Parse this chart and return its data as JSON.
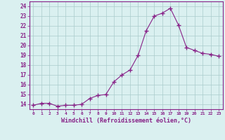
{
  "x": [
    0,
    1,
    2,
    3,
    4,
    5,
    6,
    7,
    8,
    9,
    10,
    11,
    12,
    13,
    14,
    15,
    16,
    17,
    18,
    19,
    20,
    21,
    22,
    23
  ],
  "y": [
    13.9,
    14.1,
    14.1,
    13.8,
    13.9,
    13.9,
    14.0,
    14.6,
    14.9,
    15.0,
    16.3,
    17.0,
    17.5,
    19.0,
    21.5,
    23.0,
    23.3,
    23.8,
    22.1,
    19.8,
    19.5,
    19.2,
    19.1,
    18.9
  ],
  "line_color": "#882288",
  "marker": "+",
  "marker_size": 4,
  "bg_color": "#daf0f0",
  "grid_color": "#aacccc",
  "xlabel": "Windchill (Refroidissement éolien,°C)",
  "xlabel_color": "#882288",
  "ylabel_ticks": [
    14,
    15,
    16,
    17,
    18,
    19,
    20,
    21,
    22,
    23,
    24
  ],
  "xtick_labels": [
    "0",
    "1",
    "2",
    "3",
    "4",
    "5",
    "6",
    "7",
    "8",
    "9",
    "10",
    "11",
    "12",
    "13",
    "14",
    "15",
    "16",
    "17",
    "18",
    "19",
    "20",
    "21",
    "22",
    "23"
  ],
  "ylim": [
    13.5,
    24.5
  ],
  "xlim": [
    -0.5,
    23.5
  ],
  "tick_color": "#882288",
  "ax_color": "#882288"
}
